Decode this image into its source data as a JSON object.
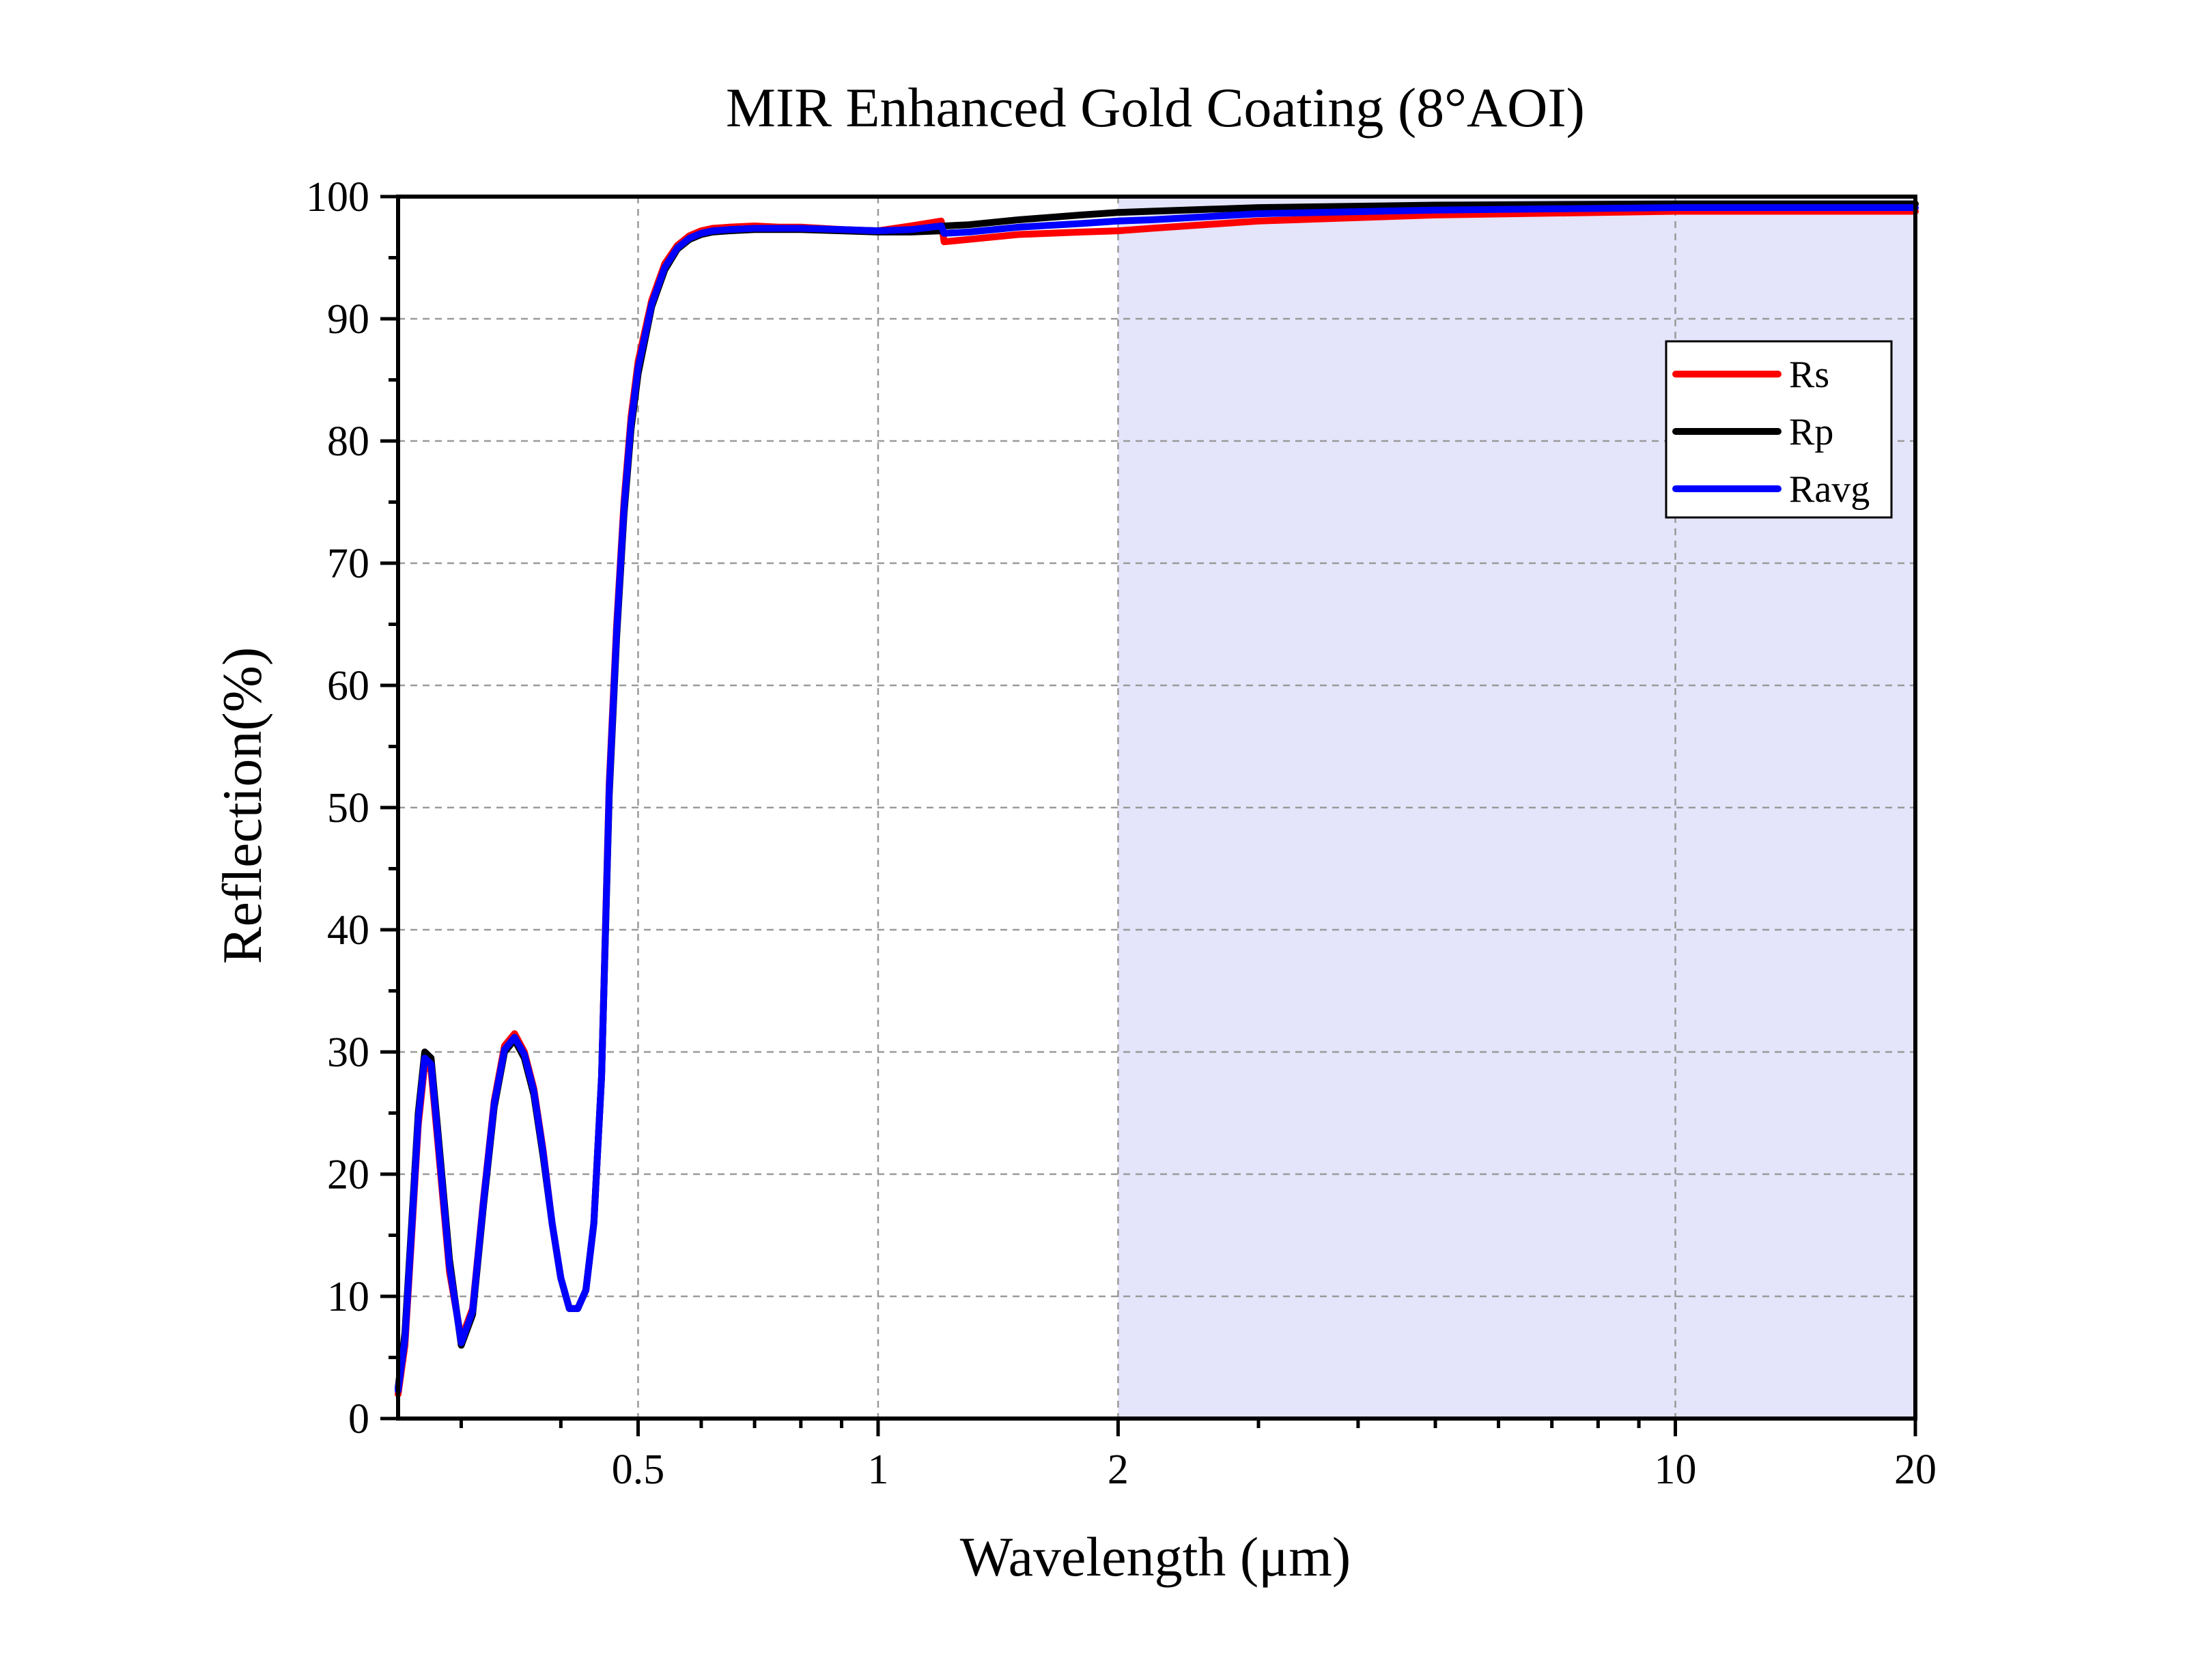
{
  "chart_data": {
    "type": "line",
    "title": "MIR Enhanced Gold Coating (8°AOI)",
    "xlabel": "Wavelength (μm)",
    "ylabel": "Reflection(%)",
    "x_scale": "log",
    "xlim": [
      0.25,
      20
    ],
    "ylim": [
      0,
      100
    ],
    "x_tick_values": [
      0.5,
      1,
      2,
      10,
      20
    ],
    "x_tick_labels": [
      "0.5",
      "1",
      "2",
      "10",
      "20"
    ],
    "y_tick_values": [
      0,
      10,
      20,
      30,
      40,
      50,
      60,
      70,
      80,
      90,
      100
    ],
    "y_tick_labels": [
      "0",
      "10",
      "20",
      "30",
      "40",
      "50",
      "60",
      "70",
      "80",
      "90",
      "100"
    ],
    "grid": true,
    "legend_position": "top-right",
    "shaded_region": {
      "x_from": 2,
      "x_to": 20,
      "color": "#e4e4fb"
    },
    "series": [
      {
        "name": "Rs",
        "color": "#ff0000",
        "x": [
          0.25,
          0.255,
          0.26,
          0.265,
          0.27,
          0.275,
          0.28,
          0.29,
          0.3,
          0.31,
          0.32,
          0.33,
          0.34,
          0.35,
          0.36,
          0.37,
          0.38,
          0.39,
          0.4,
          0.41,
          0.42,
          0.43,
          0.44,
          0.45,
          0.46,
          0.47,
          0.48,
          0.49,
          0.5,
          0.52,
          0.54,
          0.56,
          0.58,
          0.6,
          0.62,
          0.65,
          0.7,
          0.75,
          0.8,
          0.9,
          1.0,
          1.1,
          1.2,
          1.21,
          1.3,
          1.5,
          1.8,
          2.0,
          2.2,
          3.0,
          5.0,
          10.0,
          20.0
        ],
        "y": [
          2,
          6,
          15,
          24,
          29,
          28.5,
          23,
          12,
          6.5,
          9,
          18,
          26,
          30.5,
          31.5,
          30,
          27,
          22,
          16,
          11.5,
          9,
          9,
          10.5,
          16,
          28,
          52,
          65,
          75,
          82,
          86.5,
          91.5,
          94.5,
          96,
          96.8,
          97.2,
          97.4,
          97.5,
          97.6,
          97.5,
          97.5,
          97.3,
          97.2,
          97.6,
          98,
          96.3,
          96.5,
          96.9,
          97.1,
          97.2,
          97.4,
          98,
          98.5,
          98.8,
          98.8
        ]
      },
      {
        "name": "Rp",
        "color": "#000000",
        "x": [
          0.25,
          0.255,
          0.26,
          0.265,
          0.27,
          0.275,
          0.28,
          0.29,
          0.3,
          0.31,
          0.32,
          0.33,
          0.34,
          0.35,
          0.36,
          0.37,
          0.38,
          0.39,
          0.4,
          0.41,
          0.42,
          0.43,
          0.44,
          0.45,
          0.46,
          0.47,
          0.48,
          0.49,
          0.5,
          0.52,
          0.54,
          0.56,
          0.58,
          0.6,
          0.62,
          0.65,
          0.7,
          0.75,
          0.8,
          0.9,
          1.0,
          1.1,
          1.2,
          1.21,
          1.3,
          1.5,
          1.8,
          2.0,
          2.2,
          3.0,
          5.0,
          10.0,
          20.0
        ],
        "y": [
          2.5,
          7,
          16,
          25,
          30,
          29.5,
          24,
          13,
          6,
          8.5,
          17.5,
          25.5,
          30,
          31,
          29.5,
          26.5,
          21.5,
          16,
          11.5,
          9,
          9,
          10.5,
          16,
          28,
          51,
          64,
          74,
          81,
          85.5,
          91,
          94,
          95.7,
          96.5,
          96.9,
          97.1,
          97.2,
          97.3,
          97.3,
          97.3,
          97.2,
          97.1,
          97.1,
          97.2,
          97.6,
          97.7,
          98.1,
          98.5,
          98.7,
          98.8,
          99.1,
          99.3,
          99.4,
          99.4
        ]
      },
      {
        "name": "Ravg",
        "color": "#0000ff",
        "x": [
          0.25,
          0.255,
          0.26,
          0.265,
          0.27,
          0.275,
          0.28,
          0.29,
          0.3,
          0.31,
          0.32,
          0.33,
          0.34,
          0.35,
          0.36,
          0.37,
          0.38,
          0.39,
          0.4,
          0.41,
          0.42,
          0.43,
          0.44,
          0.45,
          0.46,
          0.47,
          0.48,
          0.49,
          0.5,
          0.52,
          0.54,
          0.56,
          0.58,
          0.6,
          0.62,
          0.65,
          0.7,
          0.75,
          0.8,
          0.9,
          1.0,
          1.1,
          1.2,
          1.21,
          1.3,
          1.5,
          1.8,
          2.0,
          2.2,
          3.0,
          5.0,
          10.0,
          20.0
        ],
        "y": [
          2.3,
          6.5,
          15.5,
          24.5,
          29.5,
          29,
          23.5,
          12.5,
          6.2,
          8.8,
          17.8,
          25.8,
          30.2,
          31.2,
          29.8,
          26.8,
          21.8,
          16,
          11.5,
          9,
          9,
          10.5,
          16,
          28,
          51.5,
          64.5,
          74.5,
          81.5,
          86,
          91.2,
          94.2,
          95.8,
          96.6,
          97,
          97.2,
          97.3,
          97.4,
          97.4,
          97.4,
          97.3,
          97.2,
          97.3,
          97.6,
          97,
          97.1,
          97.5,
          97.8,
          98,
          98.1,
          98.6,
          98.9,
          99.1,
          99.1
        ]
      }
    ]
  }
}
